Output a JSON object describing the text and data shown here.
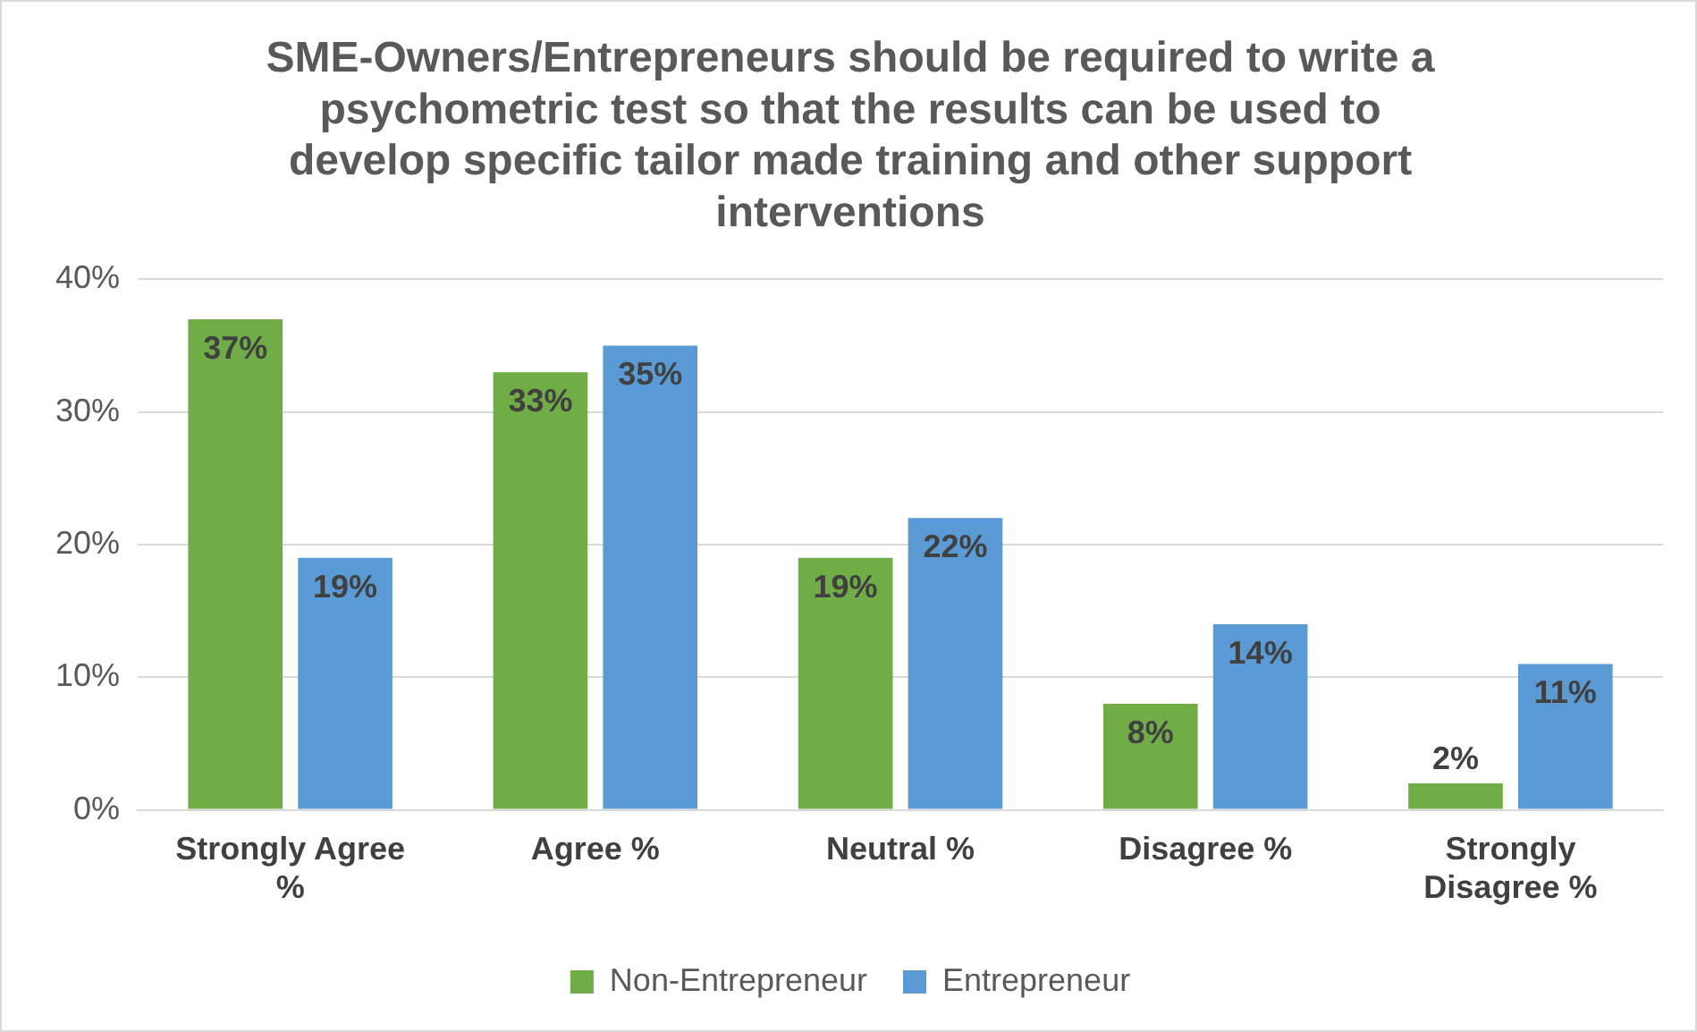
{
  "chart_data": {
    "type": "bar",
    "title": "SME-Owners/Entrepreneurs should be required to write a psychometric test so that the results can be used to develop specific tailor made training and other support interventions",
    "categories": [
      "Strongly Agree %",
      "Agree %",
      "Neutral %",
      "Disagree %",
      "Strongly Disagree %"
    ],
    "series": [
      {
        "name": "Non-Entrepreneur",
        "color": "#70ad47",
        "values": [
          37,
          33,
          19,
          8,
          2
        ],
        "value_labels": [
          "37%",
          "33%",
          "19%",
          "8%",
          "2%"
        ]
      },
      {
        "name": "Entrepreneur",
        "color": "#5b9bd5",
        "values": [
          19,
          35,
          22,
          14,
          11
        ],
        "value_labels": [
          "19%",
          "35%",
          "22%",
          "14%",
          "11%"
        ]
      }
    ],
    "ylim": [
      0,
      40
    ],
    "yticks": [
      {
        "value": 0,
        "label": "0%"
      },
      {
        "value": 10,
        "label": "10%"
      },
      {
        "value": 20,
        "label": "20%"
      },
      {
        "value": 30,
        "label": "30%"
      },
      {
        "value": 40,
        "label": "40%"
      }
    ],
    "grid": "y",
    "legend": "bottom"
  }
}
